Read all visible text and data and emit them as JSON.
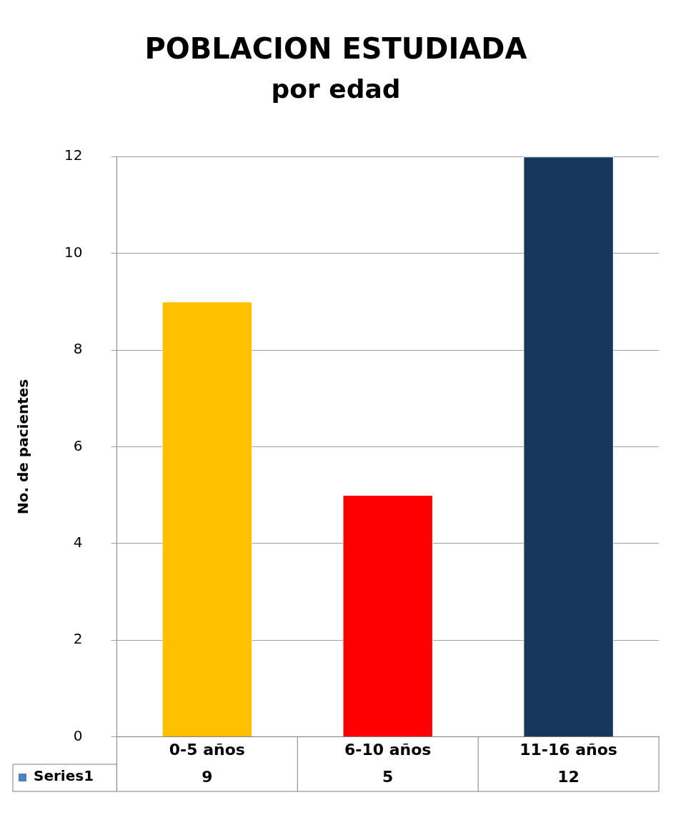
{
  "chart_data": {
    "type": "bar",
    "title": "POBLACION ESTUDIADA",
    "subtitle": "por edad",
    "ylabel": "No. de pacientes",
    "categories": [
      "0-5 años",
      "6-10 años",
      "11-16 años"
    ],
    "series": [
      {
        "name": "Series1",
        "color": "#4f81bd",
        "colors": [
          "#ffc000",
          "#ff0000",
          "#17375e"
        ],
        "values": [
          9,
          5,
          12
        ]
      }
    ],
    "ylim": [
      0,
      12
    ],
    "yticks": [
      0,
      2,
      4,
      6,
      8,
      10,
      12
    ],
    "grid": "y",
    "legend": "bottom",
    "data_labels": true
  }
}
